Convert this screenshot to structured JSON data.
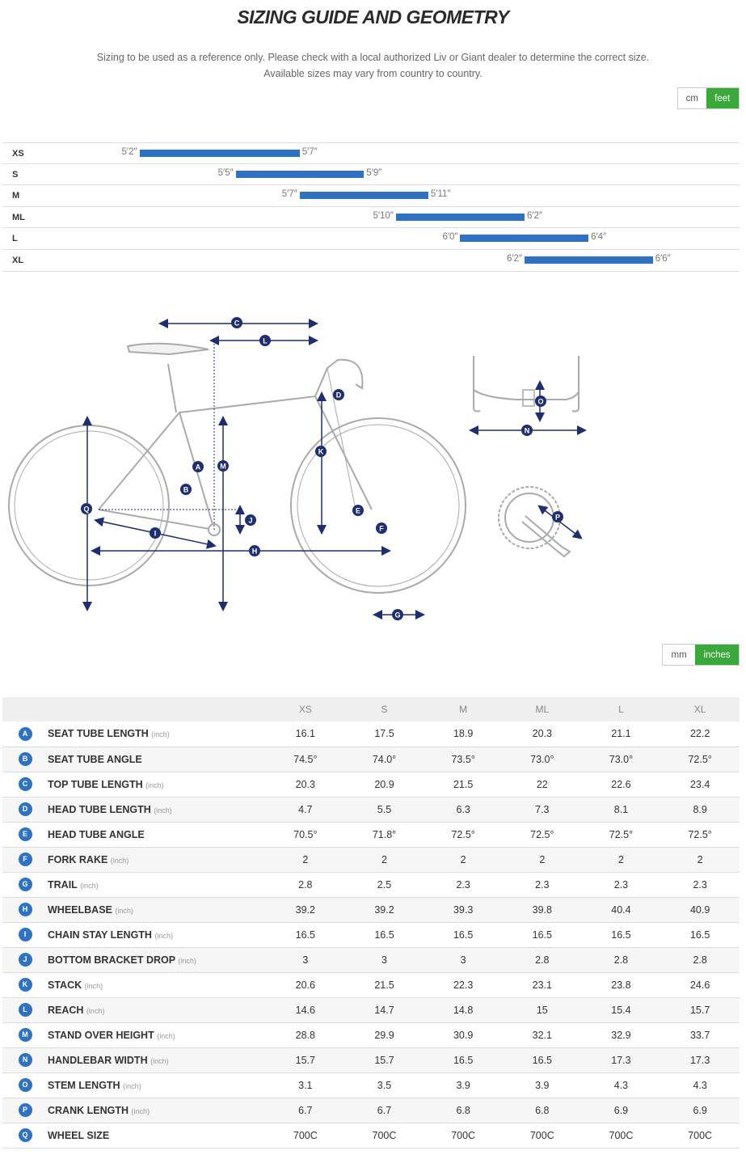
{
  "header": {
    "title": "SIZING GUIDE AND GEOMETRY",
    "subtitle_line1": "Sizing to be used as a reference only. Please check with a local authorized Liv or Giant dealer to determine the correct size.",
    "subtitle_line2": "Available sizes may vary from country to country."
  },
  "height_units": {
    "option_cm": "cm",
    "option_feet": "feet",
    "selected": "feet"
  },
  "height_chart": {
    "scale_ft": [
      5.0,
      6.7
    ],
    "rows": [
      {
        "size": "XS",
        "min_label": "5′2″",
        "max_label": "5′7″",
        "min": 5.167,
        "max": 5.583
      },
      {
        "size": "S",
        "min_label": "5′5″",
        "max_label": "5′9″",
        "min": 5.417,
        "max": 5.75
      },
      {
        "size": "M",
        "min_label": "5′7″",
        "max_label": "5′11″",
        "min": 5.583,
        "max": 5.917
      },
      {
        "size": "ML",
        "min_label": "5′10″",
        "max_label": "6′2″",
        "min": 5.833,
        "max": 6.167
      },
      {
        "size": "L",
        "min_label": "6′0″",
        "max_label": "6′4″",
        "min": 6.0,
        "max": 6.333
      },
      {
        "size": "XL",
        "min_label": "6′2″",
        "max_label": "6′6″",
        "min": 6.167,
        "max": 6.5
      }
    ]
  },
  "diagram_labels": [
    "A",
    "B",
    "C",
    "D",
    "E",
    "F",
    "G",
    "H",
    "I",
    "J",
    "K",
    "L",
    "M",
    "N",
    "O",
    "P",
    "Q"
  ],
  "geometry_units": {
    "option_mm": "mm",
    "option_inches": "inches",
    "selected": "inches"
  },
  "geometry": {
    "sizes": [
      "XS",
      "S",
      "M",
      "ML",
      "L",
      "XL"
    ],
    "rows": [
      {
        "letter": "A",
        "label": "SEAT TUBE LENGTH",
        "unit": "(inch)",
        "values": [
          "16.1",
          "17.5",
          "18.9",
          "20.3",
          "21.1",
          "22.2"
        ]
      },
      {
        "letter": "B",
        "label": "SEAT TUBE ANGLE",
        "unit": "",
        "values": [
          "74.5°",
          "74.0°",
          "73.5°",
          "73.0°",
          "73.0°",
          "72.5°"
        ]
      },
      {
        "letter": "C",
        "label": "TOP TUBE LENGTH",
        "unit": "(inch)",
        "values": [
          "20.3",
          "20.9",
          "21.5",
          "22",
          "22.6",
          "23.4"
        ]
      },
      {
        "letter": "D",
        "label": "HEAD TUBE LENGTH",
        "unit": "(inch)",
        "values": [
          "4.7",
          "5.5",
          "6.3",
          "7.3",
          "8.1",
          "8.9"
        ]
      },
      {
        "letter": "E",
        "label": "HEAD TUBE ANGLE",
        "unit": "",
        "values": [
          "70.5°",
          "71.8°",
          "72.5°",
          "72.5°",
          "72.5°",
          "72.5°"
        ]
      },
      {
        "letter": "F",
        "label": "FORK RAKE",
        "unit": "(inch)",
        "values": [
          "2",
          "2",
          "2",
          "2",
          "2",
          "2"
        ]
      },
      {
        "letter": "G",
        "label": "TRAIL",
        "unit": "(inch)",
        "values": [
          "2.8",
          "2.5",
          "2.3",
          "2.3",
          "2.3",
          "2.3"
        ]
      },
      {
        "letter": "H",
        "label": "WHEELBASE",
        "unit": "(inch)",
        "values": [
          "39.2",
          "39.2",
          "39.3",
          "39.8",
          "40.4",
          "40.9"
        ]
      },
      {
        "letter": "I",
        "label": "CHAIN STAY LENGTH",
        "unit": "(inch)",
        "values": [
          "16.5",
          "16.5",
          "16.5",
          "16.5",
          "16.5",
          "16.5"
        ]
      },
      {
        "letter": "J",
        "label": "BOTTOM BRACKET DROP",
        "unit": "(inch)",
        "values": [
          "3",
          "3",
          "3",
          "2.8",
          "2.8",
          "2.8"
        ]
      },
      {
        "letter": "K",
        "label": "STACK",
        "unit": "(inch)",
        "values": [
          "20.6",
          "21.5",
          "22.3",
          "23.1",
          "23.8",
          "24.6"
        ]
      },
      {
        "letter": "L",
        "label": "REACH",
        "unit": "(inch)",
        "values": [
          "14.6",
          "14.7",
          "14.8",
          "15",
          "15.4",
          "15.7"
        ]
      },
      {
        "letter": "M",
        "label": "STAND OVER HEIGHT",
        "unit": "(inch)",
        "values": [
          "28.8",
          "29.9",
          "30.9",
          "32.1",
          "32.9",
          "33.7"
        ]
      },
      {
        "letter": "N",
        "label": "HANDLEBAR WIDTH",
        "unit": "(inch)",
        "values": [
          "15.7",
          "15.7",
          "16.5",
          "16.5",
          "17.3",
          "17.3"
        ]
      },
      {
        "letter": "O",
        "label": "STEM LENGTH",
        "unit": "(inch)",
        "values": [
          "3.1",
          "3.5",
          "3.9",
          "3.9",
          "4.3",
          "4.3"
        ]
      },
      {
        "letter": "P",
        "label": "CRANK LENGTH",
        "unit": "(inch)",
        "values": [
          "6.7",
          "6.7",
          "6.8",
          "6.8",
          "6.9",
          "6.9"
        ]
      },
      {
        "letter": "Q",
        "label": "WHEEL SIZE",
        "unit": "",
        "values": [
          "700C",
          "700C",
          "700C",
          "700C",
          "700C",
          "700C"
        ]
      }
    ]
  },
  "colors": {
    "accent_green": "#3aa83a",
    "bar_blue": "#2f72c2",
    "diagram_navy": "#1f2f6e"
  }
}
